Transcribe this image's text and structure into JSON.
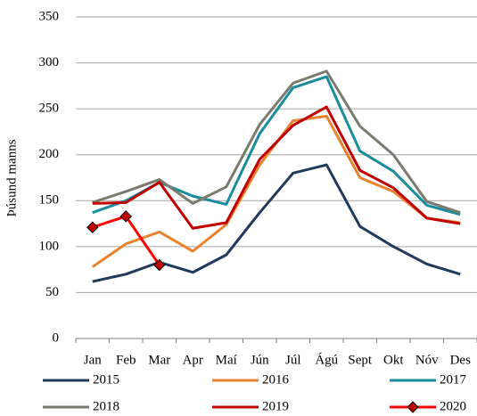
{
  "chart_data": {
    "type": "line",
    "y_label": "Þúsund manns",
    "categories": [
      "Jan",
      "Feb",
      "Mar",
      "Apr",
      "Maí",
      "Jún",
      "Júl",
      "Ágú",
      "Sept",
      "Okt",
      "Nóv",
      "Des"
    ],
    "series": [
      {
        "name": "2015",
        "color": "#1f3a5a",
        "values": [
          62,
          70,
          83,
          72,
          91,
          137,
          180,
          189,
          122,
          100,
          81,
          70
        ]
      },
      {
        "name": "2016",
        "color": "#e9822f",
        "values": [
          78,
          103,
          116,
          95,
          124,
          189,
          237,
          242,
          175,
          160,
          131,
          126
        ]
      },
      {
        "name": "2017",
        "color": "#1a8c9c",
        "values": [
          137,
          150,
          170,
          155,
          146,
          223,
          273,
          285,
          204,
          182,
          145,
          135
        ]
      },
      {
        "name": "2018",
        "color": "#7a7a6e",
        "values": [
          148,
          160,
          173,
          147,
          165,
          233,
          278,
          291,
          231,
          200,
          149,
          137
        ]
      },
      {
        "name": "2019",
        "color": "#c00000",
        "values": [
          147,
          148,
          170,
          120,
          126,
          195,
          232,
          252,
          183,
          164,
          131,
          125
        ]
      },
      {
        "name": "2020",
        "color": "#ff0000",
        "marker": "diamond",
        "marker_color": "#c00000",
        "values": [
          121,
          133,
          80,
          null,
          null,
          null,
          null,
          null,
          null,
          null,
          null,
          null
        ]
      }
    ],
    "ylim": [
      0,
      350
    ],
    "yticks": [
      0,
      50,
      100,
      150,
      200,
      250,
      300,
      350
    ],
    "grid": true
  }
}
